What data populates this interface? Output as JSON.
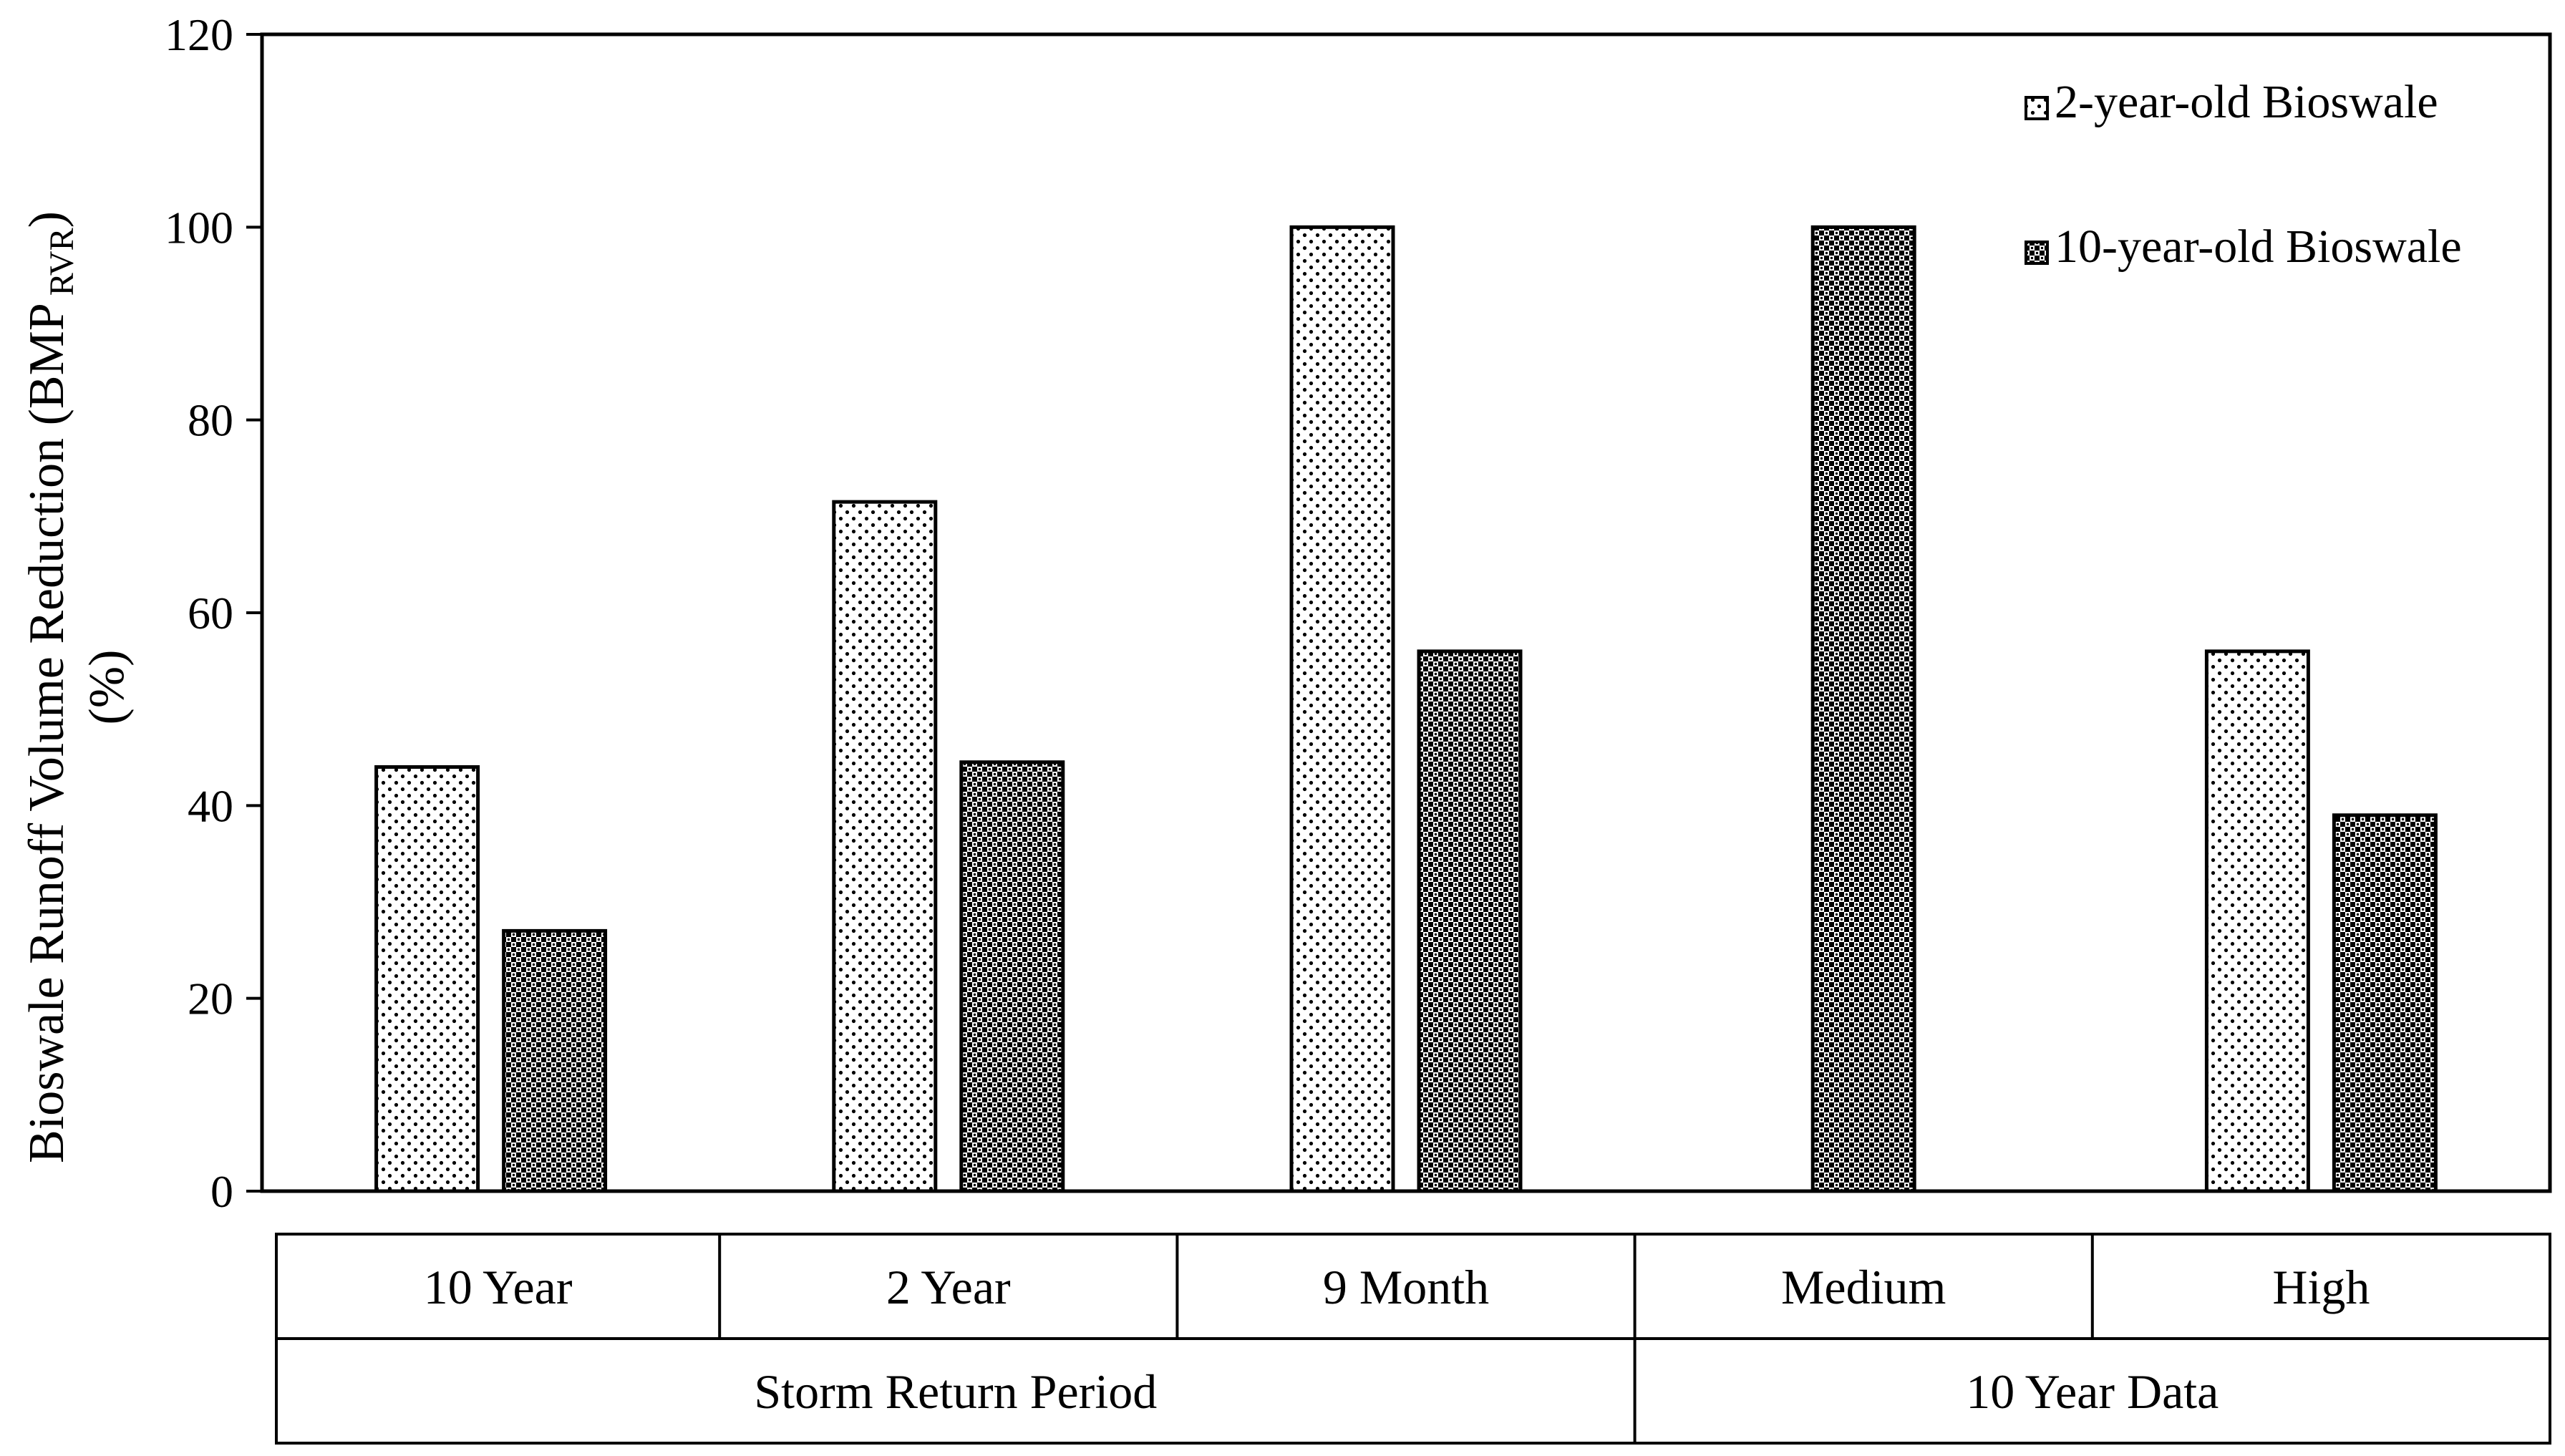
{
  "chart_data": {
    "type": "bar",
    "categories": [
      "10 Year",
      "2 Year",
      "9 Month",
      "Medium",
      "High"
    ],
    "category_groups": [
      {
        "label": "Storm Return Period",
        "categories": [
          "10 Year",
          "2 Year",
          "9 Month"
        ]
      },
      {
        "label": "10 Year Data",
        "categories": [
          "Medium",
          "High"
        ]
      }
    ],
    "series": [
      {
        "name": "2-year-old Bioswale",
        "values": [
          44,
          71.5,
          100,
          null,
          56
        ],
        "pattern": "light-dots"
      },
      {
        "name": "10-year-old Bioswale",
        "values": [
          27,
          44.5,
          56,
          100,
          39
        ],
        "pattern": "dark-checker"
      }
    ],
    "ylabel": {
      "main": "Bioswale Runoff Volume Reduction (BMP",
      "subscript": "RVR",
      "close": ")",
      "line2": "(%)"
    },
    "ylim": [
      0,
      120
    ],
    "yticks": [
      "0",
      "20",
      "40",
      "60",
      "80",
      "100",
      "120"
    ],
    "grid": false,
    "legend_position": "top-right",
    "colors": {
      "axis": "#000000",
      "background": "#ffffff",
      "bar_fill": "#ffffff",
      "dot": "#000000"
    }
  }
}
